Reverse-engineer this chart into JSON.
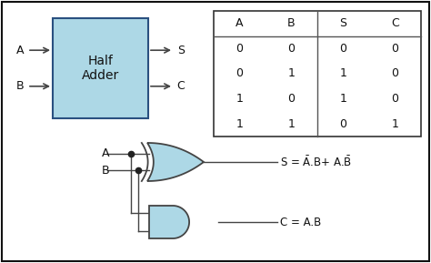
{
  "bg": "#ffffff",
  "border_color": "#111111",
  "box_fill": "#add8e6",
  "box_edge": "#2a5080",
  "gate_fill": "#add8e6",
  "gate_edge": "#444444",
  "line_color": "#444444",
  "text_color": "#111111",
  "table_headers": [
    "A",
    "B",
    "S",
    "C"
  ],
  "table_rows": [
    [
      "0",
      "0",
      "0",
      "0"
    ],
    [
      "0",
      "1",
      "1",
      "0"
    ],
    [
      "1",
      "0",
      "1",
      "0"
    ],
    [
      "1",
      "1",
      "0",
      "1"
    ]
  ],
  "half_adder_label": "Half\nAdder",
  "figw": 4.74,
  "figh": 2.89,
  "dpi": 100
}
